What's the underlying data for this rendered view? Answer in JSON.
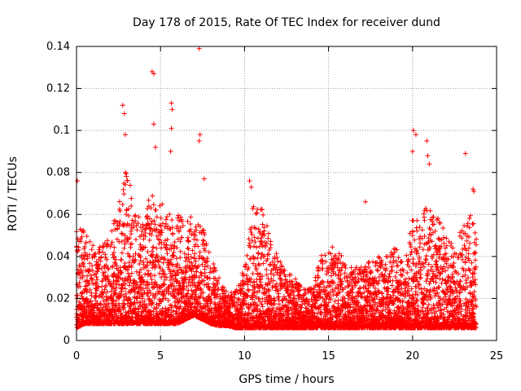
{
  "chart_data": {
    "type": "scatter",
    "title": "Day 178 of 2015, Rate Of TEC Index for receiver dund",
    "xlabel": "GPS time / hours",
    "ylabel": "ROTI / TECUs",
    "xlim": [
      0,
      25
    ],
    "ylim": [
      0,
      0.14
    ],
    "xticks": [
      0,
      5,
      10,
      15,
      20,
      25
    ],
    "yticks": [
      0,
      0.02,
      0.04,
      0.06,
      0.08,
      0.1,
      0.12,
      0.14
    ],
    "xtick_labels": [
      "0",
      "5",
      "10",
      "15",
      "20",
      "25"
    ],
    "ytick_labels": [
      "0",
      "0.02",
      "0.04",
      "0.06",
      "0.08",
      "0.1",
      "0.12",
      "0.14"
    ],
    "grid": true,
    "marker": "+",
    "marker_color": "#ff0000",
    "series": [
      {
        "name": "ROTI",
        "x_range": [
          0,
          23.8
        ],
        "sample_interval_hours": 0.015,
        "envelope": {
          "hours": [
            0,
            0.5,
            1,
            1.5,
            2,
            2.5,
            3,
            3.5,
            4,
            4.5,
            5,
            5.5,
            6,
            6.5,
            7,
            7.5,
            8,
            8.5,
            9,
            9.5,
            10,
            10.5,
            11,
            11.5,
            12,
            12.5,
            13,
            13.5,
            14,
            14.5,
            15,
            15.5,
            16,
            16.5,
            17,
            17.5,
            18,
            18.5,
            19,
            19.5,
            20,
            20.5,
            21,
            21.5,
            22,
            22.5,
            23,
            23.5,
            23.8
          ],
          "typical_max": [
            0.055,
            0.052,
            0.045,
            0.045,
            0.05,
            0.065,
            0.085,
            0.06,
            0.06,
            0.072,
            0.065,
            0.065,
            0.06,
            0.058,
            0.06,
            0.055,
            0.04,
            0.03,
            0.022,
            0.024,
            0.035,
            0.065,
            0.065,
            0.05,
            0.04,
            0.033,
            0.03,
            0.025,
            0.025,
            0.04,
            0.045,
            0.045,
            0.038,
            0.035,
            0.035,
            0.038,
            0.04,
            0.043,
            0.045,
            0.035,
            0.06,
            0.06,
            0.065,
            0.06,
            0.05,
            0.045,
            0.055,
            0.06,
            0.05
          ],
          "floor": [
            0.006,
            0.008,
            0.008,
            0.008,
            0.008,
            0.008,
            0.008,
            0.008,
            0.008,
            0.008,
            0.008,
            0.008,
            0.008,
            0.01,
            0.012,
            0.01,
            0.008,
            0.007,
            0.007,
            0.006,
            0.006,
            0.006,
            0.006,
            0.006,
            0.006,
            0.006,
            0.006,
            0.006,
            0.006,
            0.006,
            0.006,
            0.006,
            0.006,
            0.006,
            0.006,
            0.006,
            0.006,
            0.006,
            0.006,
            0.006,
            0.006,
            0.006,
            0.006,
            0.006,
            0.006,
            0.006,
            0.006,
            0.006,
            0.006
          ]
        },
        "notable_points": [
          {
            "x": 0.05,
            "y": 0.076
          },
          {
            "x": 2.75,
            "y": 0.112
          },
          {
            "x": 2.85,
            "y": 0.108
          },
          {
            "x": 2.9,
            "y": 0.098
          },
          {
            "x": 4.5,
            "y": 0.128
          },
          {
            "x": 4.6,
            "y": 0.127
          },
          {
            "x": 4.6,
            "y": 0.103
          },
          {
            "x": 4.7,
            "y": 0.092
          },
          {
            "x": 5.65,
            "y": 0.113
          },
          {
            "x": 5.7,
            "y": 0.11
          },
          {
            "x": 5.65,
            "y": 0.101
          },
          {
            "x": 5.6,
            "y": 0.09
          },
          {
            "x": 7.3,
            "y": 0.139
          },
          {
            "x": 7.35,
            "y": 0.098
          },
          {
            "x": 7.3,
            "y": 0.095
          },
          {
            "x": 7.6,
            "y": 0.077
          },
          {
            "x": 10.3,
            "y": 0.076
          },
          {
            "x": 10.4,
            "y": 0.073
          },
          {
            "x": 17.2,
            "y": 0.066
          },
          {
            "x": 20.05,
            "y": 0.1
          },
          {
            "x": 20.0,
            "y": 0.09
          },
          {
            "x": 20.2,
            "y": 0.098
          },
          {
            "x": 20.85,
            "y": 0.095
          },
          {
            "x": 20.9,
            "y": 0.088
          },
          {
            "x": 21.0,
            "y": 0.084
          },
          {
            "x": 23.15,
            "y": 0.089
          },
          {
            "x": 23.6,
            "y": 0.072
          },
          {
            "x": 23.65,
            "y": 0.071
          }
        ]
      }
    ]
  }
}
